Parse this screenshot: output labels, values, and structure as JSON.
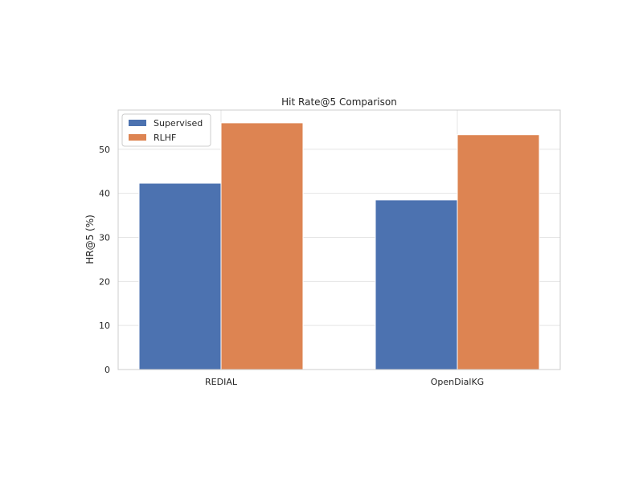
{
  "chart_data": {
    "type": "bar",
    "title": "Hit Rate@5 Comparison",
    "xlabel": "",
    "ylabel": "HR@5 (%)",
    "categories": [
      "REDIAL",
      "OpenDialKG"
    ],
    "series": [
      {
        "name": "Supervised",
        "values": [
          42.3,
          38.5
        ],
        "color": "#4c72b0"
      },
      {
        "name": "RLHF",
        "values": [
          56.0,
          53.3
        ],
        "color": "#dd8452"
      }
    ],
    "ylim": [
      0,
      58.9
    ],
    "yticks": [
      0,
      10,
      20,
      30,
      40,
      50
    ],
    "grid": true,
    "legend_position": "upper left"
  }
}
